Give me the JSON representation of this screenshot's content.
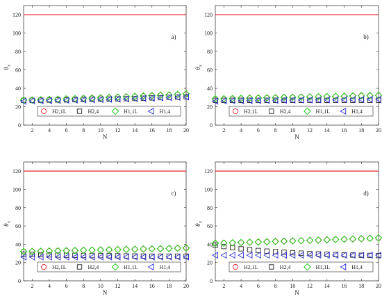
{
  "chart_data": [
    {
      "type": "scatter",
      "panel_label": "a)",
      "xlabel": "N",
      "ylabel": "θ",
      "ylabel_sub": "s",
      "xlim": [
        1,
        20
      ],
      "ylim": [
        0,
        130
      ],
      "xticks": [
        2,
        4,
        6,
        8,
        10,
        12,
        14,
        16,
        18,
        20
      ],
      "yticks": [
        0,
        20,
        40,
        60,
        80,
        100,
        120
      ],
      "reference_line": {
        "y": 120,
        "color": "#e8262b"
      },
      "x": [
        1,
        2,
        3,
        4,
        5,
        6,
        7,
        8,
        9,
        10,
        11,
        12,
        13,
        14,
        15,
        16,
        17,
        18,
        19,
        20
      ],
      "series": [
        {
          "name": "H2,1L",
          "marker": "circle",
          "color": "#e8262b",
          "values": [
            27,
            27.3,
            27.6,
            27.9,
            28.2,
            28.5,
            28.8,
            29.1,
            29.4,
            29.7,
            30,
            30.4,
            30.8,
            31.2,
            31.6,
            32,
            32.4,
            32.8,
            33.2,
            33.6
          ]
        },
        {
          "name": "H2,4",
          "marker": "square",
          "color": "#222222",
          "values": [
            27,
            27,
            27.1,
            27.2,
            27.3,
            27.4,
            27.6,
            27.8,
            28,
            28.2,
            28.4,
            28.6,
            28.8,
            29,
            29.3,
            29.6,
            29.9,
            30.2,
            30.5,
            30.8
          ]
        },
        {
          "name": "H1,1L",
          "marker": "diamond",
          "color": "#2fd22f",
          "values": [
            27,
            27.3,
            27.6,
            27.9,
            28.2,
            28.5,
            28.8,
            29.1,
            29.4,
            29.7,
            30.1,
            30.5,
            30.9,
            31.3,
            31.7,
            32.1,
            32.5,
            32.9,
            33.4,
            34
          ]
        },
        {
          "name": "H1,4",
          "marker": "triangle-left",
          "color": "#2b2fd9",
          "values": [
            26,
            26.2,
            26.4,
            26.6,
            26.8,
            27,
            27.2,
            27.4,
            27.6,
            27.8,
            28,
            28.2,
            28.4,
            28.7,
            29,
            29.3,
            29.6,
            29.9,
            30.2,
            30.6
          ]
        }
      ]
    },
    {
      "type": "scatter",
      "panel_label": "b)",
      "xlabel": "N",
      "ylabel": "θ",
      "ylabel_sub": "s",
      "xlim": [
        1,
        20
      ],
      "ylim": [
        0,
        130
      ],
      "xticks": [
        2,
        4,
        6,
        8,
        10,
        12,
        14,
        16,
        18,
        20
      ],
      "yticks": [
        0,
        20,
        40,
        60,
        80,
        100,
        120
      ],
      "reference_line": {
        "y": 120,
        "color": "#e8262b"
      },
      "x": [
        1,
        2,
        3,
        4,
        5,
        6,
        7,
        8,
        9,
        10,
        11,
        12,
        13,
        14,
        15,
        16,
        17,
        18,
        19,
        20
      ],
      "series": [
        {
          "name": "H2,1L",
          "marker": "circle",
          "color": "#e8262b",
          "values": [
            28.5,
            28.7,
            28.9,
            29.1,
            29.3,
            29.5,
            29.7,
            29.9,
            30.1,
            30.3,
            30.5,
            30.7,
            30.9,
            31.1,
            31.3,
            31.5,
            31.7,
            31.9,
            32.1,
            32.3
          ]
        },
        {
          "name": "H2,4",
          "marker": "square",
          "color": "#222222",
          "values": [
            27,
            27,
            27,
            27,
            27,
            27,
            27,
            27,
            27,
            27,
            27,
            27,
            27,
            27,
            27,
            27,
            27,
            27,
            27,
            27
          ]
        },
        {
          "name": "H1,1L",
          "marker": "diamond",
          "color": "#2fd22f",
          "values": [
            28.5,
            28.7,
            28.9,
            29.1,
            29.3,
            29.5,
            29.7,
            29.9,
            30.1,
            30.3,
            30.5,
            30.7,
            30.9,
            31.1,
            31.3,
            31.5,
            31.7,
            31.9,
            32.1,
            32.4
          ]
        },
        {
          "name": "H1,4",
          "marker": "triangle-left",
          "color": "#2b2fd9",
          "values": [
            26,
            26.2,
            26.4,
            26.5,
            26.6,
            26.7,
            26.8,
            26.9,
            27,
            27.1,
            27.2,
            27.3,
            27.4,
            27.5,
            27.6,
            27.7,
            27.8,
            27.9,
            28,
            28.1
          ]
        }
      ]
    },
    {
      "type": "scatter",
      "panel_label": "c)",
      "xlabel": "N",
      "ylabel": "θ",
      "ylabel_sub": "s",
      "xlim": [
        1,
        20
      ],
      "ylim": [
        0,
        130
      ],
      "xticks": [
        2,
        4,
        6,
        8,
        10,
        12,
        14,
        16,
        18,
        20
      ],
      "yticks": [
        0,
        20,
        40,
        60,
        80,
        100,
        120
      ],
      "reference_line": {
        "y": 120,
        "color": "#e8262b"
      },
      "x": [
        1,
        2,
        3,
        4,
        5,
        6,
        7,
        8,
        9,
        10,
        11,
        12,
        13,
        14,
        15,
        16,
        17,
        18,
        19,
        20
      ],
      "series": [
        {
          "name": "H2,1L",
          "marker": "circle",
          "color": "#e8262b",
          "values": [
            32,
            32.2,
            32.4,
            32.6,
            32.8,
            33,
            33.2,
            33.4,
            33.6,
            33.8,
            34,
            34.2,
            34.4,
            34.6,
            34.8,
            35,
            35.2,
            35.4,
            35.6,
            35.8
          ]
        },
        {
          "name": "H2,4",
          "marker": "square",
          "color": "#222222",
          "values": [
            29,
            28.8,
            28.6,
            28.4,
            28.2,
            28,
            27.9,
            27.8,
            27.7,
            27.6,
            27.5,
            27.4,
            27.3,
            27.2,
            27.1,
            27,
            27,
            27,
            27,
            27
          ]
        },
        {
          "name": "H1,1L",
          "marker": "diamond",
          "color": "#2fd22f",
          "values": [
            32,
            32.2,
            32.4,
            32.6,
            32.8,
            33,
            33.2,
            33.4,
            33.6,
            33.8,
            34,
            34.2,
            34.4,
            34.6,
            34.8,
            35,
            35.2,
            35.4,
            35.7,
            36
          ]
        },
        {
          "name": "H1,4",
          "marker": "triangle-left",
          "color": "#2b2fd9",
          "values": [
            26,
            26,
            26,
            26,
            26,
            26,
            26,
            26,
            26,
            26,
            26,
            26,
            26,
            26,
            26,
            26,
            26,
            26,
            26,
            26
          ]
        }
      ]
    },
    {
      "type": "scatter",
      "panel_label": "d)",
      "xlabel": "N",
      "ylabel": "θ",
      "ylabel_sub": "s",
      "xlim": [
        1,
        20
      ],
      "ylim": [
        0,
        130
      ],
      "xticks": [
        2,
        4,
        6,
        8,
        10,
        12,
        14,
        16,
        18,
        20
      ],
      "yticks": [
        0,
        20,
        40,
        60,
        80,
        100,
        120
      ],
      "reference_line": {
        "y": 120,
        "color": "#e8262b"
      },
      "x": [
        1,
        2,
        3,
        4,
        5,
        6,
        7,
        8,
        9,
        10,
        11,
        12,
        13,
        14,
        15,
        16,
        17,
        18,
        19,
        20
      ],
      "series": [
        {
          "name": "H2,1L",
          "marker": "circle",
          "color": "#e8262b",
          "values": [
            41,
            41.3,
            41.6,
            41.9,
            42.2,
            42.5,
            42.8,
            43.1,
            43.4,
            43.7,
            44,
            44.3,
            44.6,
            44.9,
            45.2,
            45.5,
            45.8,
            46.1,
            46.4,
            46.7
          ]
        },
        {
          "name": "H2,4",
          "marker": "square",
          "color": "#222222",
          "values": [
            39,
            37.5,
            36.2,
            35,
            34,
            33.2,
            32.5,
            31.9,
            31.3,
            30.8,
            30.3,
            29.9,
            29.5,
            29.1,
            28.8,
            28.5,
            28.2,
            28,
            27.8,
            27.6
          ]
        },
        {
          "name": "H1,1L",
          "marker": "diamond",
          "color": "#2fd22f",
          "values": [
            41,
            41.3,
            41.6,
            41.9,
            42.2,
            42.5,
            42.8,
            43.1,
            43.4,
            43.7,
            44,
            44.3,
            44.6,
            44.9,
            45.2,
            45.5,
            45.8,
            46.1,
            46.5,
            47
          ]
        },
        {
          "name": "H1,4",
          "marker": "triangle-left",
          "color": "#2b2fd9",
          "values": [
            28,
            28,
            28,
            28,
            28,
            28,
            28,
            28,
            28,
            28,
            28,
            28,
            28,
            28,
            28,
            28,
            28,
            28,
            28,
            28
          ]
        }
      ]
    }
  ]
}
